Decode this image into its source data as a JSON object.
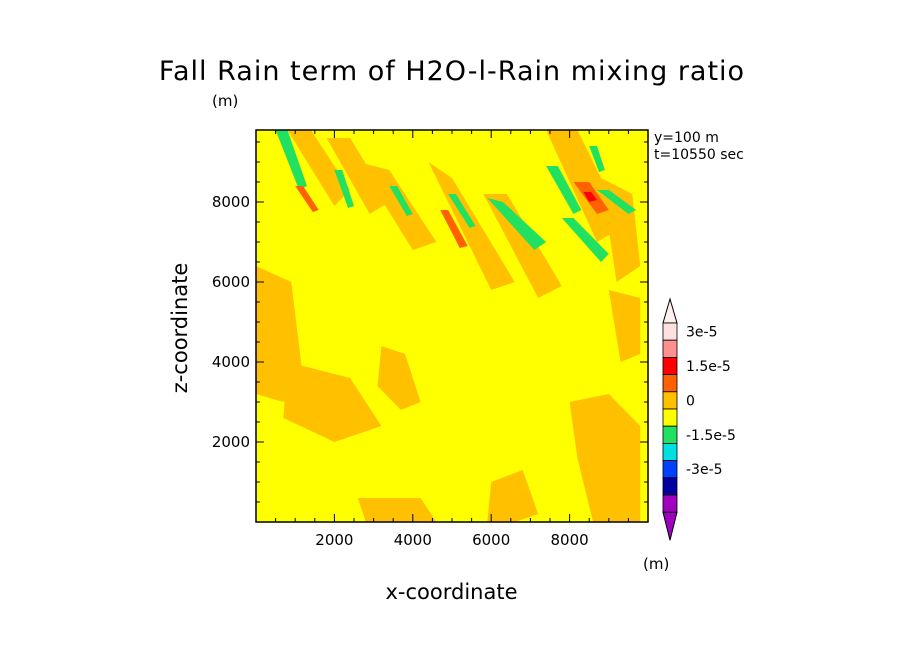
{
  "chart_data": {
    "type": "heatmap",
    "title": "Fall Rain term of H2O-l-Rain mixing ratio",
    "title_unit": "(m)",
    "xlabel": "x-coordinate",
    "ylabel": "z-coordinate",
    "xlim": [
      0,
      10000
    ],
    "ylim": [
      0,
      9800
    ],
    "xticks": [
      2000,
      4000,
      6000,
      8000
    ],
    "yticks": [
      2000,
      4000,
      6000,
      8000
    ],
    "annotations": [
      "y=100 m",
      "t=10550 sec"
    ],
    "background_value_color": "#ffff00",
    "regions": [
      {
        "level": "0 to 7.5e-6",
        "color": "#ffc000",
        "points": [
          [
            800,
            9800
          ],
          [
            1400,
            9800
          ],
          [
            2400,
            8300
          ],
          [
            2000,
            7900
          ]
        ]
      },
      {
        "level": "0 to 7.5e-6",
        "color": "#ffc000",
        "points": [
          [
            1800,
            9600
          ],
          [
            2400,
            9600
          ],
          [
            3400,
            8000
          ],
          [
            2900,
            7700
          ]
        ]
      },
      {
        "level": "0 to 7.5e-6",
        "color": "#ffc000",
        "points": [
          [
            2600,
            9000
          ],
          [
            3400,
            8800
          ],
          [
            4600,
            7000
          ],
          [
            4000,
            6800
          ]
        ]
      },
      {
        "level": "0 to 7.5e-6",
        "color": "#ffc000",
        "points": [
          [
            4400,
            9000
          ],
          [
            5000,
            8600
          ],
          [
            6600,
            6000
          ],
          [
            6000,
            5800
          ]
        ]
      },
      {
        "level": "0 to 7.5e-6",
        "color": "#ffc000",
        "points": [
          [
            5800,
            8200
          ],
          [
            6400,
            8200
          ],
          [
            7800,
            5900
          ],
          [
            7200,
            5600
          ]
        ]
      },
      {
        "level": "0 to 7.5e-6",
        "color": "#ffc000",
        "points": [
          [
            7400,
            9800
          ],
          [
            8200,
            9800
          ],
          [
            9400,
            7400
          ],
          [
            8700,
            7000
          ]
        ]
      },
      {
        "level": "0 to 7.5e-6",
        "color": "#ffc000",
        "points": [
          [
            8800,
            8600
          ],
          [
            9600,
            8200
          ],
          [
            9800,
            6400
          ],
          [
            9200,
            6000
          ]
        ]
      },
      {
        "level": "0 to 7.5e-6",
        "color": "#ffc000",
        "points": [
          [
            0,
            6400
          ],
          [
            900,
            6000
          ],
          [
            1200,
            3600
          ],
          [
            700,
            3000
          ],
          [
            0,
            3200
          ]
        ]
      },
      {
        "level": "0 to 7.5e-6",
        "color": "#ffc000",
        "points": [
          [
            800,
            4000
          ],
          [
            2400,
            3600
          ],
          [
            3200,
            2400
          ],
          [
            2000,
            2000
          ],
          [
            700,
            2600
          ]
        ]
      },
      {
        "level": "0 to 7.5e-6",
        "color": "#ffc000",
        "points": [
          [
            8000,
            3000
          ],
          [
            9000,
            3200
          ],
          [
            9800,
            2400
          ],
          [
            9800,
            0
          ],
          [
            8600,
            0
          ],
          [
            8200,
            1600
          ]
        ]
      },
      {
        "level": "0 to 7.5e-6",
        "color": "#ffc000",
        "points": [
          [
            2600,
            600
          ],
          [
            4200,
            600
          ],
          [
            4600,
            0
          ],
          [
            2800,
            0
          ]
        ]
      },
      {
        "level": "0 to 7.5e-6",
        "color": "#ffc000",
        "points": [
          [
            6000,
            1000
          ],
          [
            6800,
            1300
          ],
          [
            7200,
            200
          ],
          [
            6600,
            0
          ],
          [
            5900,
            0
          ]
        ]
      },
      {
        "level": "0 to 7.5e-6",
        "color": "#ffc000",
        "points": [
          [
            3200,
            4400
          ],
          [
            3800,
            4200
          ],
          [
            4200,
            3000
          ],
          [
            3700,
            2800
          ],
          [
            3100,
            3400
          ]
        ]
      },
      {
        "level": "0 to 7.5e-6",
        "color": "#ffc000",
        "points": [
          [
            9000,
            5800
          ],
          [
            9800,
            5600
          ],
          [
            9800,
            4200
          ],
          [
            9300,
            4000
          ]
        ]
      },
      {
        "level": "-7.5e-6 to 0",
        "color": "#22e060",
        "points": [
          [
            500,
            9800
          ],
          [
            800,
            9800
          ],
          [
            1300,
            8400
          ],
          [
            1100,
            8300
          ]
        ]
      },
      {
        "level": "-7.5e-6 to 0",
        "color": "#22e060",
        "points": [
          [
            2000,
            8800
          ],
          [
            2200,
            8800
          ],
          [
            2500,
            7900
          ],
          [
            2350,
            7850
          ]
        ]
      },
      {
        "level": "-7.5e-6 to 0",
        "color": "#22e060",
        "points": [
          [
            5900,
            8100
          ],
          [
            6300,
            8000
          ],
          [
            7400,
            7000
          ],
          [
            7100,
            6800
          ]
        ]
      },
      {
        "level": "-7.5e-6 to 0",
        "color": "#22e060",
        "points": [
          [
            7400,
            8900
          ],
          [
            7700,
            8900
          ],
          [
            8300,
            7800
          ],
          [
            8100,
            7700
          ]
        ]
      },
      {
        "level": "-7.5e-6 to 0",
        "color": "#22e060",
        "points": [
          [
            7800,
            7600
          ],
          [
            8100,
            7600
          ],
          [
            9000,
            6700
          ],
          [
            8800,
            6500
          ]
        ]
      },
      {
        "level": "-7.5e-6 to 0",
        "color": "#22e060",
        "points": [
          [
            8700,
            8300
          ],
          [
            9000,
            8300
          ],
          [
            9700,
            7800
          ],
          [
            9500,
            7700
          ]
        ]
      },
      {
        "level": "-7.5e-6 to 0",
        "color": "#22e060",
        "points": [
          [
            8500,
            9400
          ],
          [
            8700,
            9400
          ],
          [
            8900,
            8800
          ],
          [
            8750,
            8750
          ]
        ]
      },
      {
        "level": "-7.5e-6 to 0",
        "color": "#22e060",
        "points": [
          [
            3400,
            8400
          ],
          [
            3600,
            8400
          ],
          [
            4000,
            7700
          ],
          [
            3850,
            7650
          ]
        ]
      },
      {
        "level": "-7.5e-6 to 0",
        "color": "#22e060",
        "points": [
          [
            4900,
            8200
          ],
          [
            5100,
            8200
          ],
          [
            5600,
            7400
          ],
          [
            5450,
            7350
          ]
        ]
      },
      {
        "level": "7.5e-6 to 1.5e-5",
        "color": "#ff6000",
        "points": [
          [
            8100,
            8500
          ],
          [
            8500,
            8500
          ],
          [
            9000,
            7800
          ],
          [
            8700,
            7700
          ]
        ]
      },
      {
        "level": "7.5e-6 to 1.5e-5",
        "color": "#ff6000",
        "points": [
          [
            4700,
            7800
          ],
          [
            4900,
            7800
          ],
          [
            5400,
            6900
          ],
          [
            5200,
            6850
          ]
        ]
      },
      {
        "level": "7.5e-6 to 1.5e-5",
        "color": "#ff6000",
        "points": [
          [
            1000,
            8400
          ],
          [
            1200,
            8400
          ],
          [
            1600,
            7800
          ],
          [
            1450,
            7750
          ]
        ]
      },
      {
        "level": "1.5e-5 to 2.25e-5",
        "color": "#ff0000",
        "points": [
          [
            8350,
            8250
          ],
          [
            8550,
            8250
          ],
          [
            8700,
            8050
          ],
          [
            8500,
            8000
          ]
        ]
      }
    ],
    "colorbar": {
      "colors": [
        "#ffe0e0",
        "#ff9090",
        "#ff0000",
        "#ff6000",
        "#ffc000",
        "#ffff00",
        "#22e060",
        "#00e0e0",
        "#0040ff",
        "#0000a0",
        "#a000c0"
      ],
      "labels": [
        {
          "text": "3e-5",
          "value": 3e-05
        },
        {
          "text": "1.5e-5",
          "value": 1.5e-05
        },
        {
          "text": "0",
          "value": 0
        },
        {
          "text": "-1.5e-5",
          "value": -1.5e-05
        },
        {
          "text": "-3e-5",
          "value": -3e-05
        }
      ],
      "unit": "(m)"
    }
  }
}
